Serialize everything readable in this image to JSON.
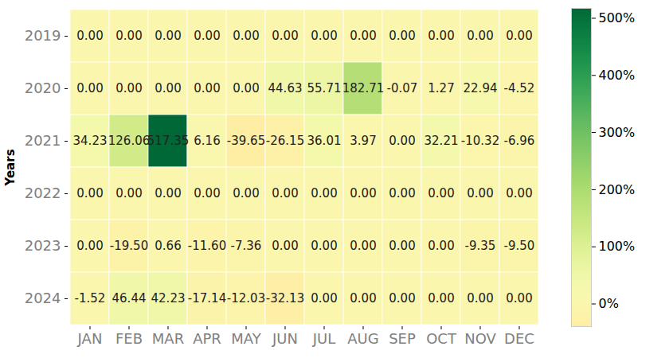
{
  "chart_data": {
    "type": "heatmap",
    "x": [
      "JAN",
      "FEB",
      "MAR",
      "APR",
      "MAY",
      "JUN",
      "JUL",
      "AUG",
      "SEP",
      "OCT",
      "NOV",
      "DEC"
    ],
    "y": [
      2019,
      2020,
      2021,
      2022,
      2023,
      2024
    ],
    "y_label": "Years",
    "data_labels": true,
    "values": [
      [
        0,
        0,
        0,
        0,
        0,
        0,
        0,
        0,
        0,
        0,
        0,
        0
      ],
      [
        0,
        0,
        0,
        0,
        0,
        44.63,
        55.71,
        182.71,
        -0.07,
        1.27,
        22.94,
        -4.52
      ],
      [
        34.23,
        126.06,
        517.35,
        6.16,
        -39.65,
        -26.15,
        36.01,
        3.97,
        0,
        32.21,
        -10.32,
        -6.96
      ],
      [
        0,
        0,
        0,
        0,
        0,
        0,
        0,
        0,
        0,
        0,
        0,
        0
      ],
      [
        0,
        -19.5,
        0.66,
        -11.6,
        -7.36,
        0,
        0,
        0,
        0,
        0,
        -9.35,
        -9.5
      ],
      [
        -1.52,
        46.44,
        42.23,
        -17.14,
        -12.03,
        -32.13,
        0,
        0,
        0,
        0,
        0,
        0
      ]
    ],
    "value_labels": [
      [
        "0.00",
        "0.00",
        "0.00",
        "0.00",
        "0.00",
        "0.00",
        "0.00",
        "0.00",
        "0.00",
        "0.00",
        "0.00",
        "0.00"
      ],
      [
        "0.00",
        "0.00",
        "0.00",
        "0.00",
        "0.00",
        "44.63",
        "55.71",
        "182.71",
        "-0.07",
        "1.27",
        "22.94",
        "-4.52"
      ],
      [
        "34.23",
        "126.06",
        "517.35",
        "6.16",
        "-39.65",
        "-26.15",
        "36.01",
        "3.97",
        "0.00",
        "32.21",
        "-10.32",
        "-6.96"
      ],
      [
        "0.00",
        "0.00",
        "0.00",
        "0.00",
        "0.00",
        "0.00",
        "0.00",
        "0.00",
        "0.00",
        "0.00",
        "0.00",
        "0.00"
      ],
      [
        "0.00",
        "-19.50",
        "0.66",
        "-11.60",
        "-7.36",
        "0.00",
        "0.00",
        "0.00",
        "0.00",
        "0.00",
        "-9.35",
        "-9.50"
      ],
      [
        "-1.52",
        "46.44",
        "42.23",
        "-17.14",
        "-12.03",
        "-32.13",
        "0.00",
        "0.00",
        "0.00",
        "0.00",
        "0.00",
        "0.00"
      ]
    ],
    "colorbar": {
      "range": [
        -39.65,
        517.35
      ],
      "ticks": [
        {
          "value": 0,
          "label": "0%"
        },
        {
          "value": 100,
          "label": "100%"
        },
        {
          "value": 200,
          "label": "200%"
        },
        {
          "value": 300,
          "label": "300%"
        },
        {
          "value": 400,
          "label": "400%"
        },
        {
          "value": 500,
          "label": "500%"
        }
      ]
    }
  }
}
